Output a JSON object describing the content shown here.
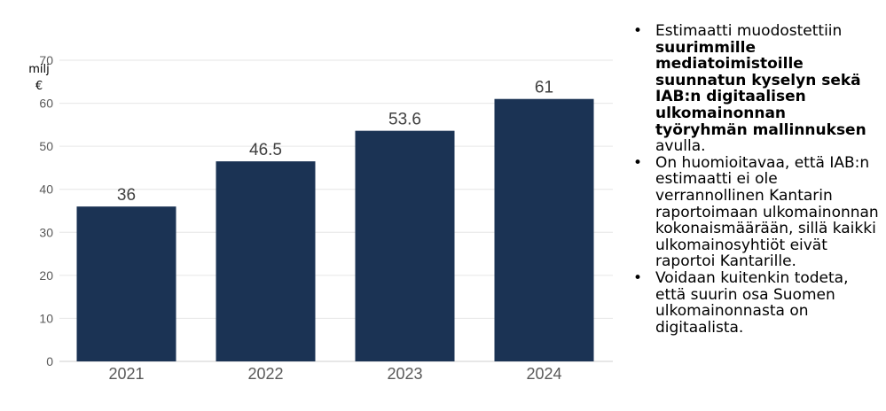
{
  "chart_data": {
    "type": "bar",
    "categories": [
      "2021",
      "2022",
      "2023",
      "2024"
    ],
    "values": [
      36,
      46.5,
      53.6,
      61
    ],
    "data_labels": [
      "36",
      "46.5",
      "53.6",
      "61"
    ],
    "ylabel_lines": [
      "milj",
      "€"
    ],
    "ylim": [
      0,
      70
    ],
    "yticks": [
      0,
      10,
      20,
      30,
      40,
      50,
      60,
      70
    ],
    "grid": true,
    "bar_color": "#1b3354"
  },
  "notes": [
    {
      "parts": [
        {
          "text": "Estimaatti muodostettiin ",
          "bold": false
        },
        {
          "text": "suurimmille mediatoimistoille suunnatun kyselyn sekä IAB:n digitaalisen ulkomainonnan työryhmän mallinnuksen",
          "bold": true
        },
        {
          "text": " avulla.",
          "bold": false
        }
      ]
    },
    {
      "parts": [
        {
          "text": "On huomioitavaa, että IAB:n estimaatti ei ole verrannollinen Kantarin raportoimaan ulkomainonnan kokonaismäärään, sillä kaikki ulkomainosyhtiöt eivät raportoi Kantarille.",
          "bold": false
        }
      ]
    },
    {
      "parts": [
        {
          "text": "Voidaan kuitenkin todeta, että suurin osa Suomen ulkomainonnasta on digitaalista.",
          "bold": false
        }
      ]
    }
  ],
  "bullet_char": "•"
}
